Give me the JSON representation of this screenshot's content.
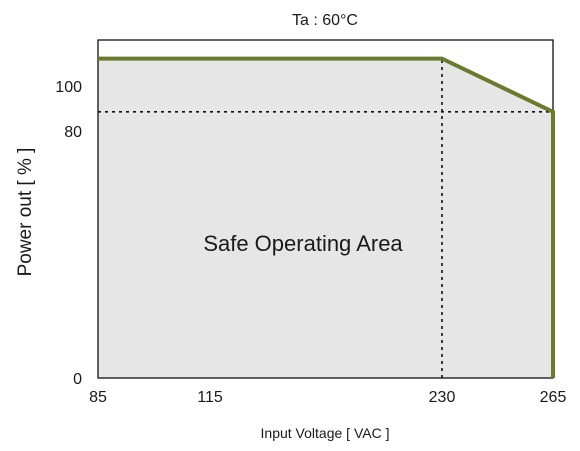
{
  "chart_data": {
    "type": "area",
    "title": "Ta : 60°C",
    "xlabel": "Input Voltage [ VAC  ]",
    "ylabel": "Power out [ % ]",
    "region_label": "Safe Operating Area",
    "xlim": [
      85,
      265
    ],
    "ylim": [
      0,
      127
    ],
    "x_ticks": [
      {
        "value": 85,
        "label": "85"
      },
      {
        "value": 115,
        "label": "115"
      },
      {
        "value": 230,
        "label": "230"
      },
      {
        "value": 265,
        "label": "265"
      }
    ],
    "y_ticks": [
      {
        "value": 0,
        "label": "0"
      },
      {
        "value": 80,
        "label": "80"
      },
      {
        "value": 100,
        "label": "100"
      }
    ],
    "series": [
      {
        "x": [
          85,
          230,
          265,
          265
        ],
        "y": [
          120,
          120,
          100,
          0
        ],
        "color": "#6b7a2e"
      }
    ],
    "reference_lines": [
      {
        "orientation": "vertical",
        "x": 230,
        "y_from": 0,
        "y_to": 120
      },
      {
        "orientation": "horizontal",
        "y": 100,
        "x_from": 85,
        "x_to": 265
      }
    ],
    "fill_color": "#e6e6e6",
    "grid": false
  }
}
